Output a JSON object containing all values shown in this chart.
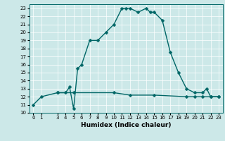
{
  "title": "",
  "xlabel": "Humidex (Indice chaleur)",
  "bg_color": "#cce8e8",
  "grid_color": "#ffffff",
  "line_color": "#006666",
  "xlim": [
    -0.5,
    23.5
  ],
  "ylim": [
    10,
    23.5
  ],
  "yticks": [
    10,
    11,
    12,
    13,
    14,
    15,
    16,
    17,
    18,
    19,
    20,
    21,
    22,
    23
  ],
  "xticks": [
    0,
    1,
    3,
    4,
    5,
    6,
    7,
    8,
    9,
    10,
    11,
    12,
    13,
    14,
    15,
    16,
    17,
    18,
    19,
    20,
    21,
    22,
    23
  ],
  "curve1_x": [
    0,
    1,
    3,
    4,
    4.5,
    5,
    5.5,
    6,
    7,
    8,
    9,
    10,
    11,
    11.5,
    12,
    13,
    14,
    14.5,
    15,
    16,
    17,
    18,
    19,
    20,
    21,
    21.5,
    22,
    23
  ],
  "curve1_y": [
    11,
    12,
    12.5,
    12.5,
    13.2,
    10.5,
    15.5,
    16,
    19,
    19,
    20,
    21,
    23,
    23,
    23,
    22.5,
    23,
    22.5,
    22.5,
    21.5,
    17.5,
    15,
    13,
    12.5,
    12.5,
    13,
    12,
    12
  ],
  "curve2_x": [
    3,
    5,
    10,
    12,
    15,
    19,
    20,
    21,
    22,
    23
  ],
  "curve2_y": [
    12.5,
    12.5,
    12.5,
    12.2,
    12.2,
    12.0,
    12.0,
    12.0,
    12.0,
    12.0
  ],
  "marker_size": 2.5,
  "linewidth": 1.0,
  "tick_fontsize": 5.0,
  "label_fontsize": 6.5
}
